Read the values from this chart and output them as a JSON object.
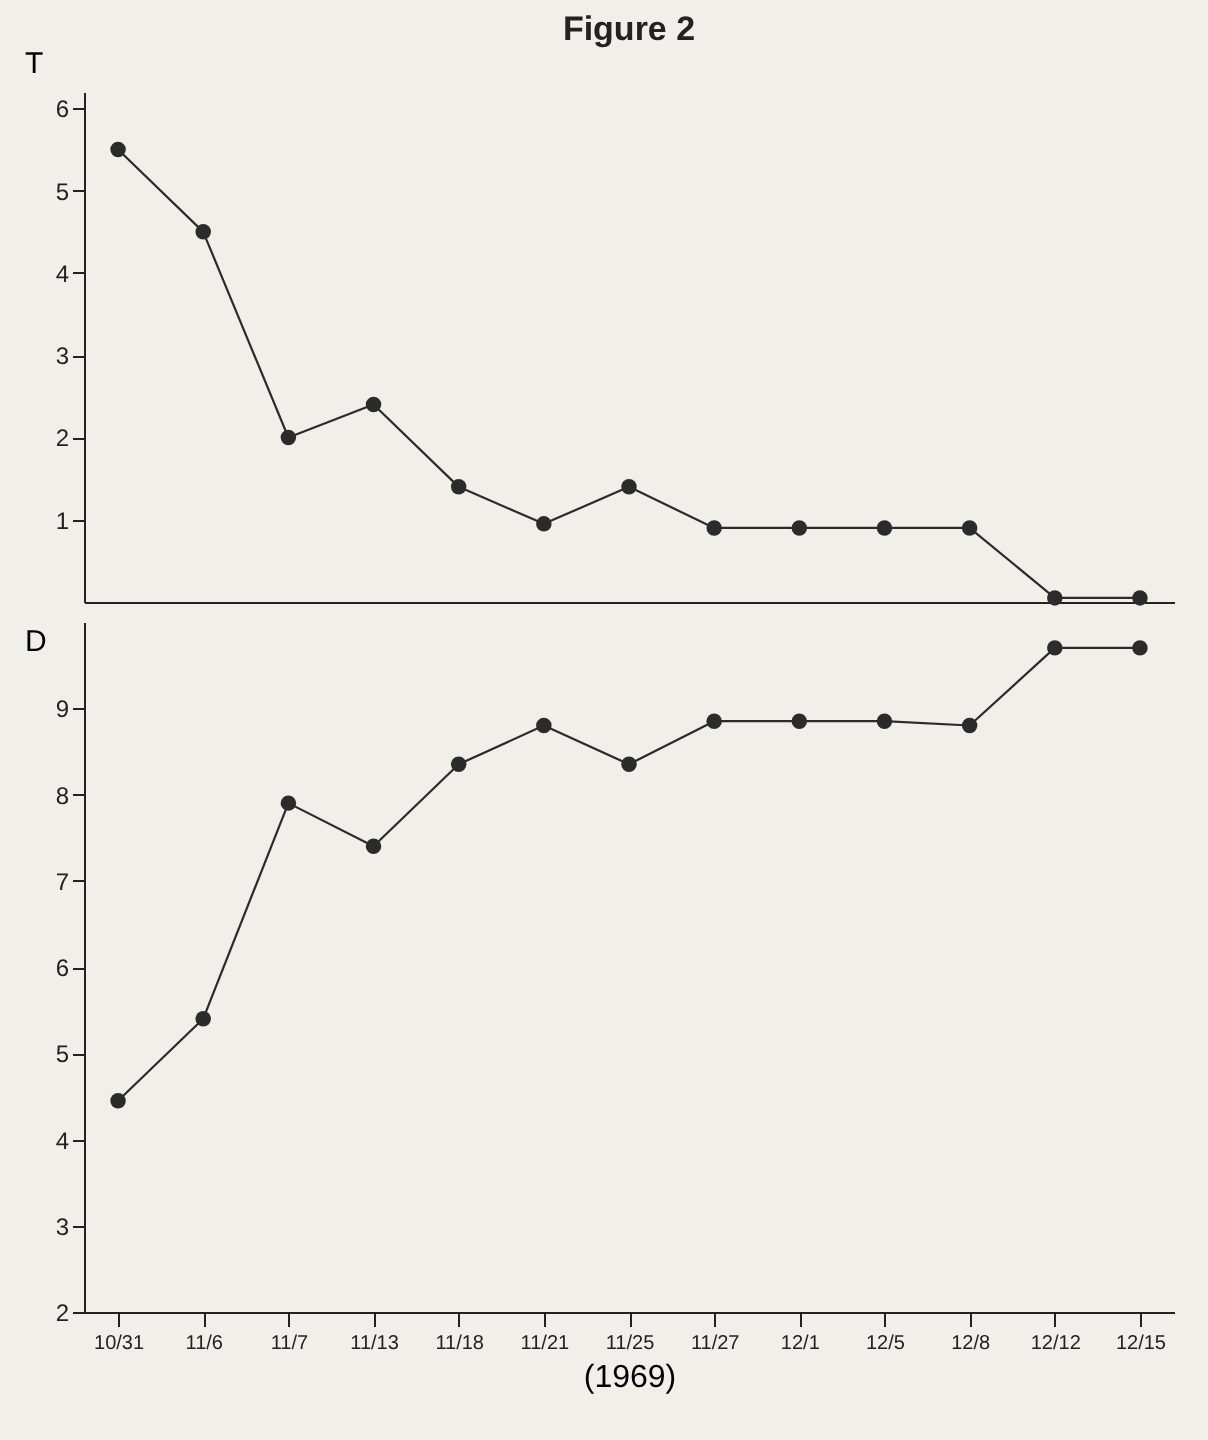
{
  "chart_data": [
    {
      "type": "line",
      "title": "Figure 2",
      "ylabel": "T",
      "categories": [
        null,
        null,
        null,
        null,
        null,
        null,
        null,
        null,
        null,
        null,
        null,
        null,
        null
      ],
      "series": [
        {
          "color": "#2b2b2b",
          "values": [
            5.5,
            4.5,
            2.0,
            2.4,
            1.4,
            0.95,
            1.4,
            0.9,
            0.9,
            0.9,
            0.9,
            0.05,
            0.05
          ]
        }
      ],
      "ylim": [
        0,
        6.2
      ],
      "yticks": [
        1,
        2,
        3,
        4,
        5,
        6
      ],
      "marker": "circle",
      "tick_labels": "y"
    },
    {
      "type": "line",
      "ylabel": "D",
      "xlabel": "(1969)",
      "categories": [
        "10/31",
        "11/6",
        "11/7",
        "11/13",
        "11/18",
        "11/21",
        "11/25",
        "11/27",
        "12/1",
        "12/5",
        "12/8",
        "12/12",
        "12/15"
      ],
      "series": [
        {
          "color": "#2b2b2b",
          "values": [
            4.45,
            5.4,
            7.9,
            7.4,
            8.35,
            8.8,
            8.35,
            8.85,
            8.85,
            8.85,
            8.8,
            9.7,
            9.7
          ]
        }
      ],
      "ylim": [
        2,
        10
      ],
      "yticks": [
        2,
        3,
        4,
        5,
        6,
        7,
        8,
        9
      ],
      "marker": "circle"
    }
  ]
}
